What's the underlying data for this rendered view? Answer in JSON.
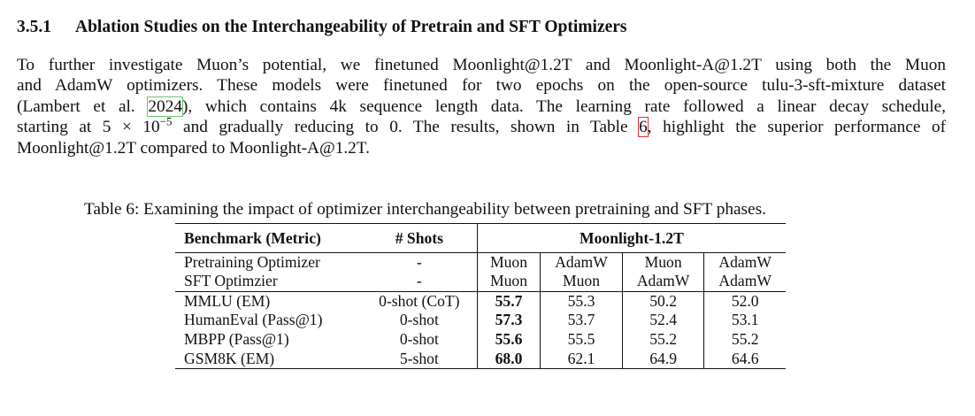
{
  "heading": {
    "number": "3.5.1",
    "title": "Ablation Studies on the Interchangeability of Pretrain and SFT Optimizers"
  },
  "paragraph": {
    "l1": "To further investigate Muon’s potential, we finetuned Moonlight@1.2T and Moonlight-A@1.2T using both the Muon",
    "l2": "and AdamW optimizers. These models were finetuned for two epochs on the open-source tulu-3-sft-mixture dataset",
    "l3_a": "(Lambert et al. ",
    "l3_cite": "2024",
    "l3_b": "), which contains 4k sequence length data. The learning rate followed a linear decay schedule,",
    "l4_a": "starting at 5 × 10",
    "l4_exp": "−5",
    "l4_b": " and gradually reducing to 0. The results, shown in Table ",
    "l4_ref": "6",
    "l4_c": ", highlight the superior performance of",
    "l5": "Moonlight@1.2T compared to Moonlight-A@1.2T."
  },
  "table": {
    "caption": "Table 6: Examining the impact of optimizer interchangeability between pretraining and SFT phases.",
    "header": {
      "benchmark": "Benchmark (Metric)",
      "shots": "# Shots",
      "model": "Moonlight-1.2T"
    },
    "config_rows": [
      {
        "label": "Pretraining Optimizer",
        "shots": "-",
        "values": [
          "Muon",
          "AdamW",
          "Muon",
          "AdamW"
        ]
      },
      {
        "label": "SFT Optimzier",
        "shots": "-",
        "values": [
          "Muon",
          "Muon",
          "AdamW",
          "AdamW"
        ]
      }
    ],
    "rows": [
      {
        "benchmark": "MMLU (EM)",
        "shots": "0-shot (CoT)",
        "values": [
          "55.7",
          "55.3",
          "50.2",
          "52.0"
        ]
      },
      {
        "benchmark": "HumanEval (Pass@1)",
        "shots": "0-shot",
        "values": [
          "57.3",
          "53.7",
          "52.4",
          "53.1"
        ]
      },
      {
        "benchmark": "MBPP (Pass@1)",
        "shots": "0-shot",
        "values": [
          "55.6",
          "55.5",
          "55.2",
          "55.2"
        ]
      },
      {
        "benchmark": "GSM8K (EM)",
        "shots": "5-shot",
        "values": [
          "68.0",
          "62.1",
          "64.9",
          "64.6"
        ]
      }
    ]
  }
}
